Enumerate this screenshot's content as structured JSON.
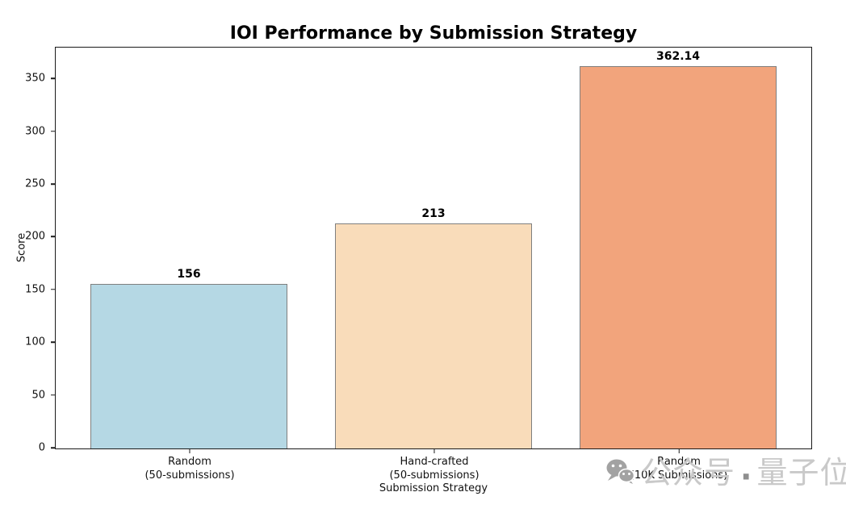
{
  "chart_data": {
    "type": "bar",
    "title": "IOI Performance by Submission Strategy",
    "xlabel": "Submission Strategy",
    "ylabel": "Score",
    "categories": [
      "Random (50-submissions)",
      "Hand-crafted (50-submissions)",
      "Random (10K Submissions)"
    ],
    "category_lines": [
      [
        "Random",
        "(50-submissions)"
      ],
      [
        "Hand-crafted",
        "(50-submissions)"
      ],
      [
        "Random",
        "(10K Submissions)"
      ]
    ],
    "values": [
      156,
      213,
      362.14
    ],
    "value_labels": [
      "156",
      "213",
      "362.14"
    ],
    "bar_colors": [
      "#b5d8e4",
      "#f9dcba",
      "#f2a47c"
    ],
    "bar_edge_color": "#7f7f7f",
    "yticks": [
      0,
      50,
      100,
      150,
      200,
      250,
      300,
      350
    ],
    "ylim": [
      0,
      380
    ],
    "grid": false,
    "legend_position": "none"
  },
  "watermark": {
    "icon": "wechat-icon",
    "icon_color": "#a2a2a2",
    "prefix": "公众号",
    "separator": "·",
    "suffix": "量子位",
    "text_color": "#c9c9c9",
    "separator_color": "#8f8f8f"
  }
}
